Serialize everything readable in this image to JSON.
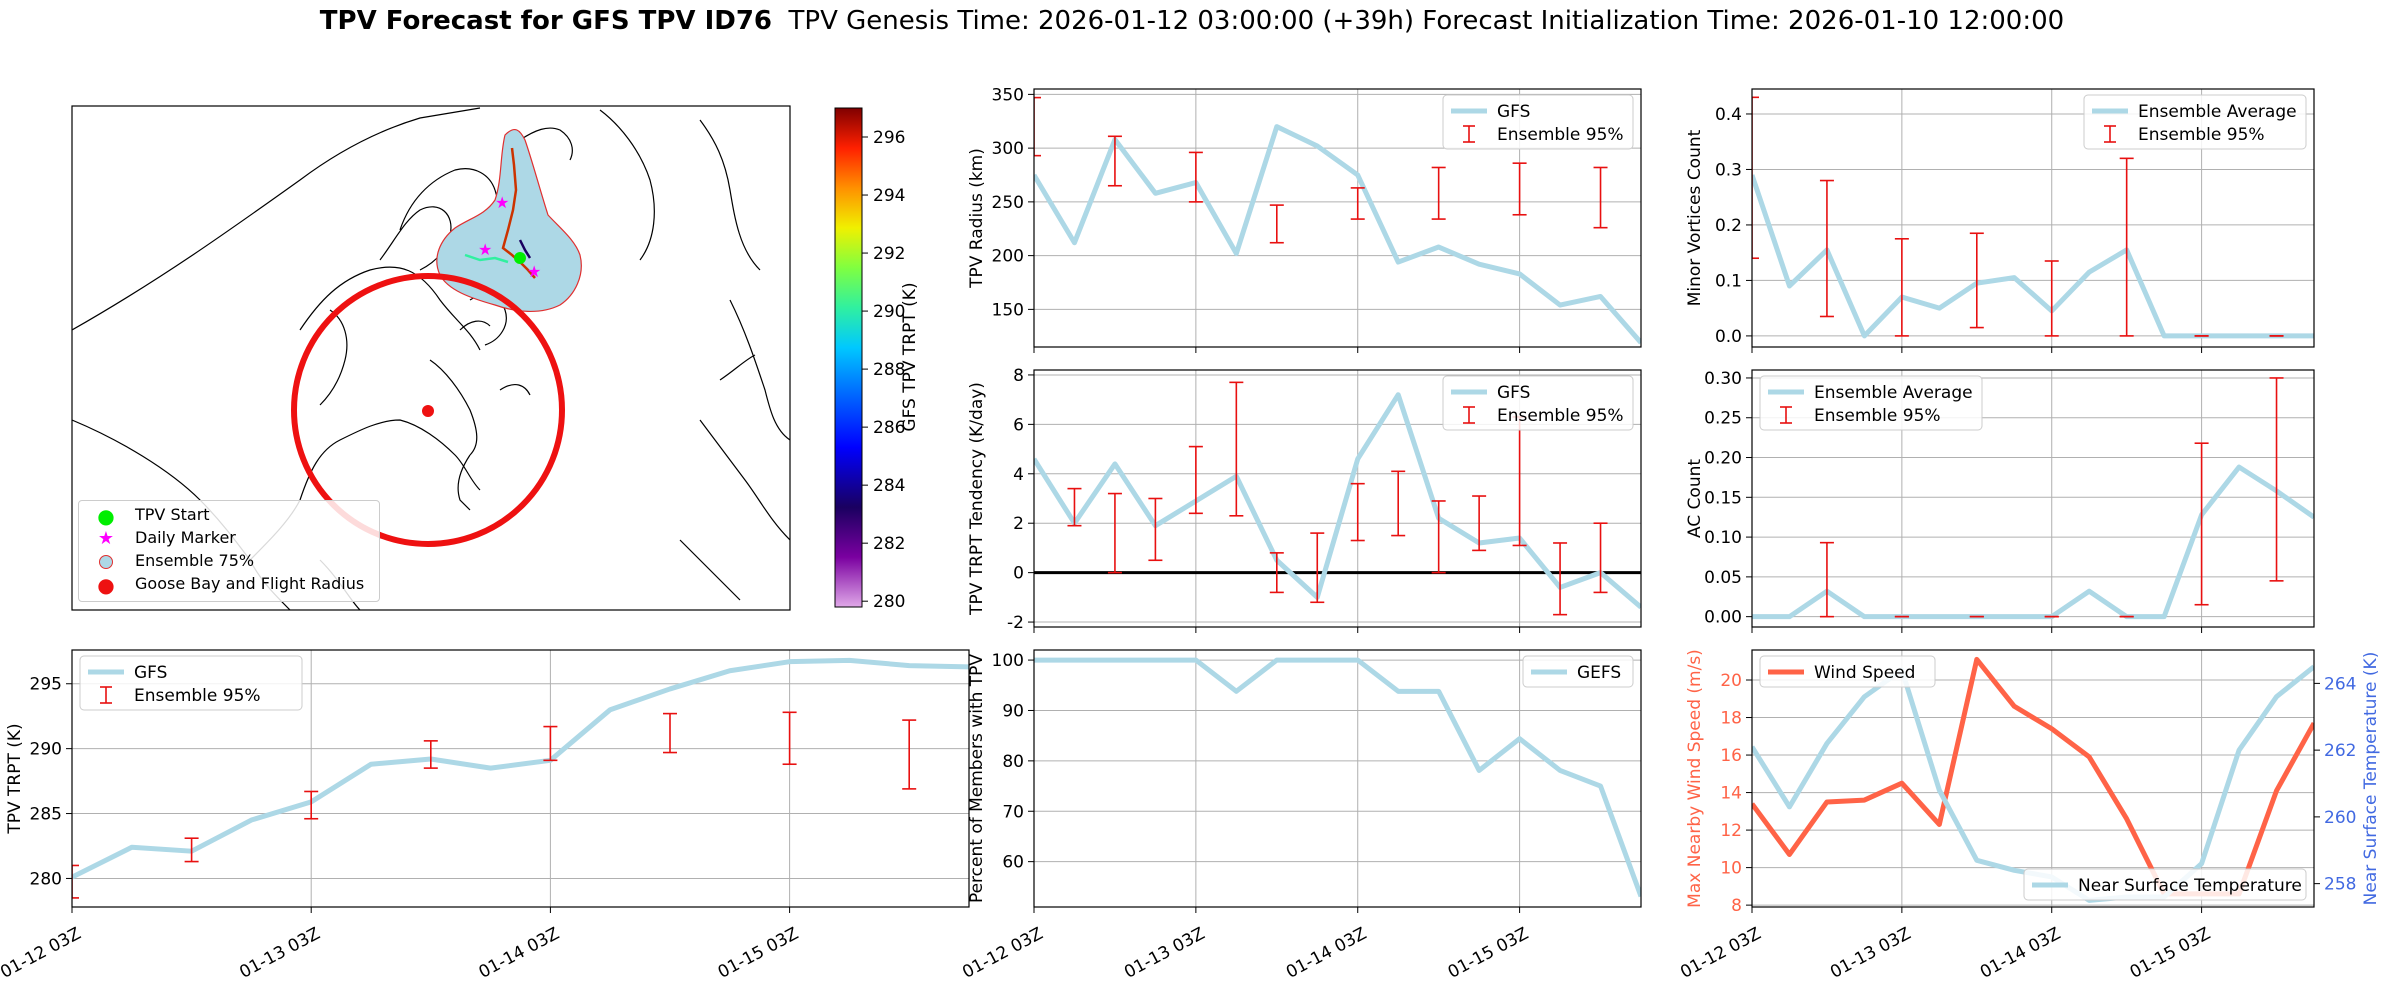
{
  "figure": {
    "title_bold": "TPV Forecast for GFS TPV ID76",
    "title_rest": "TPV Genesis Time: 2026-01-12 03:00:00 (+39h)   Forecast Initialization Time: 2026-01-10 12:00:00"
  },
  "map": {
    "colorbar": {
      "label": "GFS TPV TRPT (K)",
      "ticks": [
        280,
        282,
        284,
        286,
        288,
        290,
        292,
        294,
        296
      ],
      "range": [
        279.8,
        297.0
      ]
    },
    "legend": [
      {
        "label": "TPV Start",
        "symbol": "circle",
        "color": "#00ee00"
      },
      {
        "label": "Daily Marker",
        "symbol": "star",
        "color": "#ff00ff"
      },
      {
        "label": "Ensemble 75%",
        "symbol": "hollow-circle",
        "color": "#add8e6"
      },
      {
        "label": "Goose Bay and Flight Radius",
        "symbol": "circle",
        "color": "#ff0000"
      }
    ],
    "colors": {
      "ensemble_fill": "#add8e6",
      "ensemble_edge": "#e03030",
      "radius": "#ee1111"
    }
  },
  "chart_data": [
    {
      "id": "radius",
      "type": "line",
      "ylabel": "TPV Radius (km)",
      "ylim": [
        115,
        355
      ],
      "yticks": [
        150,
        200,
        250,
        300,
        350
      ],
      "x": [
        0,
        1,
        2,
        3,
        4,
        5,
        6,
        7,
        8,
        9,
        10,
        11,
        12,
        13,
        14,
        15
      ],
      "series": [
        {
          "name": "GFS",
          "values": [
            275,
            212,
            308,
            258,
            268,
            202,
            320,
            302,
            275,
            194,
            208,
            192,
            183,
            154,
            162,
            119
          ]
        }
      ],
      "errorbars": {
        "name": "Ensemble 95%",
        "x": [
          0,
          2,
          4,
          6,
          8,
          10,
          12,
          14
        ],
        "low": [
          293,
          265,
          250,
          212,
          234,
          234,
          238,
          226
        ],
        "high": [
          347,
          311,
          296,
          247,
          263,
          282,
          286,
          282
        ]
      },
      "legend": "top-right",
      "grid": true
    },
    {
      "id": "minor",
      "type": "line",
      "ylabel": "Minor Vortices Count",
      "ylim": [
        -0.02,
        0.445
      ],
      "yticks": [
        0.0,
        0.1,
        0.2,
        0.3,
        0.4
      ],
      "x": [
        0,
        1,
        2,
        3,
        4,
        5,
        6,
        7,
        8,
        9,
        10,
        11,
        12,
        13,
        14,
        15
      ],
      "series": [
        {
          "name": "Ensemble Average",
          "values": [
            0.29,
            0.09,
            0.155,
            0.0,
            0.07,
            0.05,
            0.095,
            0.105,
            0.045,
            0.115,
            0.155,
            0.0,
            0.0,
            0.0,
            0.0,
            0.0
          ]
        }
      ],
      "errorbars": {
        "name": "Ensemble 95%",
        "x": [
          0,
          2,
          4,
          6,
          8,
          10,
          12,
          14
        ],
        "low": [
          0.14,
          0.035,
          0.0,
          0.015,
          0.0,
          0.0,
          0.0,
          0.0
        ],
        "high": [
          0.43,
          0.28,
          0.175,
          0.185,
          0.135,
          0.32,
          0.0,
          0.0
        ]
      },
      "legend": "top-right",
      "grid": true
    },
    {
      "id": "tendency",
      "type": "line",
      "ylabel": "TPV TRPT Tendency (K/day)",
      "ylim": [
        -2.2,
        8.2
      ],
      "yticks": [
        -2,
        0,
        2,
        4,
        6,
        8
      ],
      "x": [
        0,
        1,
        2,
        3,
        4,
        5,
        6,
        7,
        8,
        9,
        10,
        11,
        12,
        13,
        14,
        15
      ],
      "series": [
        {
          "name": "GFS",
          "values": [
            4.6,
            2.0,
            4.4,
            1.9,
            2.9,
            3.9,
            0.5,
            -1.0,
            4.6,
            7.2,
            2.2,
            1.2,
            1.4,
            -0.6,
            0.0,
            -1.4
          ]
        }
      ],
      "errorbars": {
        "name": "Ensemble 95%",
        "x": [
          1,
          2,
          3,
          4,
          5,
          6,
          7,
          8,
          9,
          10,
          11,
          12,
          13,
          14
        ],
        "low": [
          1.9,
          0.0,
          0.5,
          2.4,
          2.3,
          -0.8,
          -1.2,
          1.3,
          1.5,
          0.0,
          0.9,
          1.1,
          -1.7,
          -0.8
        ],
        "high": [
          3.4,
          3.2,
          3.0,
          5.1,
          7.7,
          0.8,
          1.6,
          3.6,
          4.1,
          2.9,
          3.1,
          6.3,
          1.2,
          2.0
        ]
      },
      "hline": 0,
      "legend": "top-right",
      "grid": true
    },
    {
      "id": "ac",
      "type": "line",
      "ylabel": "AC Count",
      "ylim": [
        -0.013,
        0.31
      ],
      "yticks": [
        0.0,
        0.05,
        0.1,
        0.15,
        0.2,
        0.25,
        0.3
      ],
      "x": [
        0,
        1,
        2,
        3,
        4,
        5,
        6,
        7,
        8,
        9,
        10,
        11,
        12,
        13,
        14,
        15
      ],
      "series": [
        {
          "name": "Ensemble Average",
          "values": [
            0.0,
            0.0,
            0.032,
            0.0,
            0.0,
            0.0,
            0.0,
            0.0,
            0.0,
            0.032,
            0.0,
            0.0,
            0.128,
            0.188,
            0.158,
            0.125
          ]
        }
      ],
      "errorbars": {
        "name": "Ensemble 95%",
        "x": [
          2,
          4,
          6,
          8,
          10,
          12,
          14
        ],
        "low": [
          0.0,
          0.0,
          0.0,
          0.0,
          0.0,
          0.015,
          0.045
        ],
        "high": [
          0.093,
          0.0,
          0.0,
          0.0,
          0.0,
          0.218,
          0.3
        ]
      },
      "legend": "top-left",
      "grid": true
    },
    {
      "id": "trpt",
      "type": "line",
      "ylabel": "TPV TRPT (K)",
      "ylim": [
        277.8,
        297.6
      ],
      "yticks": [
        280,
        285,
        290,
        295
      ],
      "xticklabels": [
        "01-12 03Z",
        "01-13 03Z",
        "01-14 03Z",
        "01-15 03Z"
      ],
      "xtick_positions": [
        0,
        4,
        8,
        12
      ],
      "x": [
        0,
        1,
        2,
        3,
        4,
        5,
        6,
        7,
        8,
        9,
        10,
        11,
        12,
        13,
        14,
        15
      ],
      "series": [
        {
          "name": "GFS",
          "values": [
            280.1,
            282.4,
            282.1,
            284.5,
            285.9,
            288.8,
            289.2,
            288.5,
            289.1,
            293.0,
            294.6,
            296.0,
            296.7,
            296.8,
            296.4,
            296.3
          ]
        }
      ],
      "errorbars": {
        "name": "Ensemble 95%",
        "x": [
          0,
          2,
          4,
          6,
          8,
          10,
          12,
          14
        ],
        "low": [
          278.5,
          281.3,
          284.6,
          288.5,
          289.1,
          289.7,
          288.8,
          286.9
        ],
        "high": [
          281.0,
          283.1,
          286.7,
          290.6,
          291.7,
          292.7,
          292.8,
          292.2
        ]
      },
      "legend": "top-left",
      "grid": true
    },
    {
      "id": "percent",
      "type": "line",
      "ylabel": "Percent of Members with TPV",
      "ylim": [
        51,
        102
      ],
      "yticks": [
        60,
        70,
        80,
        90,
        100
      ],
      "xticklabels": [
        "01-12 03Z",
        "01-13 03Z",
        "01-14 03Z",
        "01-15 03Z"
      ],
      "xtick_positions": [
        0,
        4,
        8,
        12
      ],
      "x": [
        0,
        1,
        2,
        3,
        4,
        5,
        6,
        7,
        8,
        9,
        10,
        11,
        12,
        13,
        14,
        15
      ],
      "series": [
        {
          "name": "GEFS",
          "values": [
            100,
            100,
            100,
            100,
            100,
            93.8,
            100,
            100,
            100,
            93.8,
            93.8,
            78.1,
            84.4,
            78.1,
            75.0,
            53.1
          ]
        }
      ],
      "legend": "top-right",
      "grid": true
    },
    {
      "id": "wind_temp",
      "type": "line",
      "ylabel": "Max Nearby Wind Speed (m/s)",
      "ylabel_right": "Near Surface Temperature (K)",
      "ylim": [
        7.9,
        21.6
      ],
      "yticks": [
        8,
        10,
        12,
        14,
        16,
        18,
        20
      ],
      "ylim_right": [
        257.3,
        265.0
      ],
      "yticks_right": [
        258,
        260,
        262,
        264
      ],
      "xticklabels": [
        "01-12 03Z",
        "01-13 03Z",
        "01-14 03Z",
        "01-15 03Z"
      ],
      "xtick_positions": [
        0,
        4,
        8,
        12
      ],
      "x": [
        0,
        1,
        2,
        3,
        4,
        5,
        6,
        7,
        8,
        9,
        10,
        11,
        12,
        13,
        14,
        15
      ],
      "series": [
        {
          "name": "Wind Speed",
          "axis": "left",
          "color": "#ff6347",
          "values": [
            13.4,
            10.7,
            13.5,
            13.6,
            14.5,
            12.3,
            21.1,
            18.6,
            17.4,
            15.9,
            12.6,
            8.6,
            8.6,
            8.6,
            14.1,
            17.7
          ]
        },
        {
          "name": "Near Surface Temperature",
          "axis": "right",
          "color": "#add8e6",
          "values": [
            262.1,
            260.3,
            262.2,
            263.6,
            264.4,
            260.8,
            258.7,
            258.4,
            258.2,
            257.5,
            257.6,
            257.6,
            258.6,
            262.0,
            263.6,
            264.5
          ]
        }
      ],
      "legend": "split",
      "grid": true
    }
  ]
}
